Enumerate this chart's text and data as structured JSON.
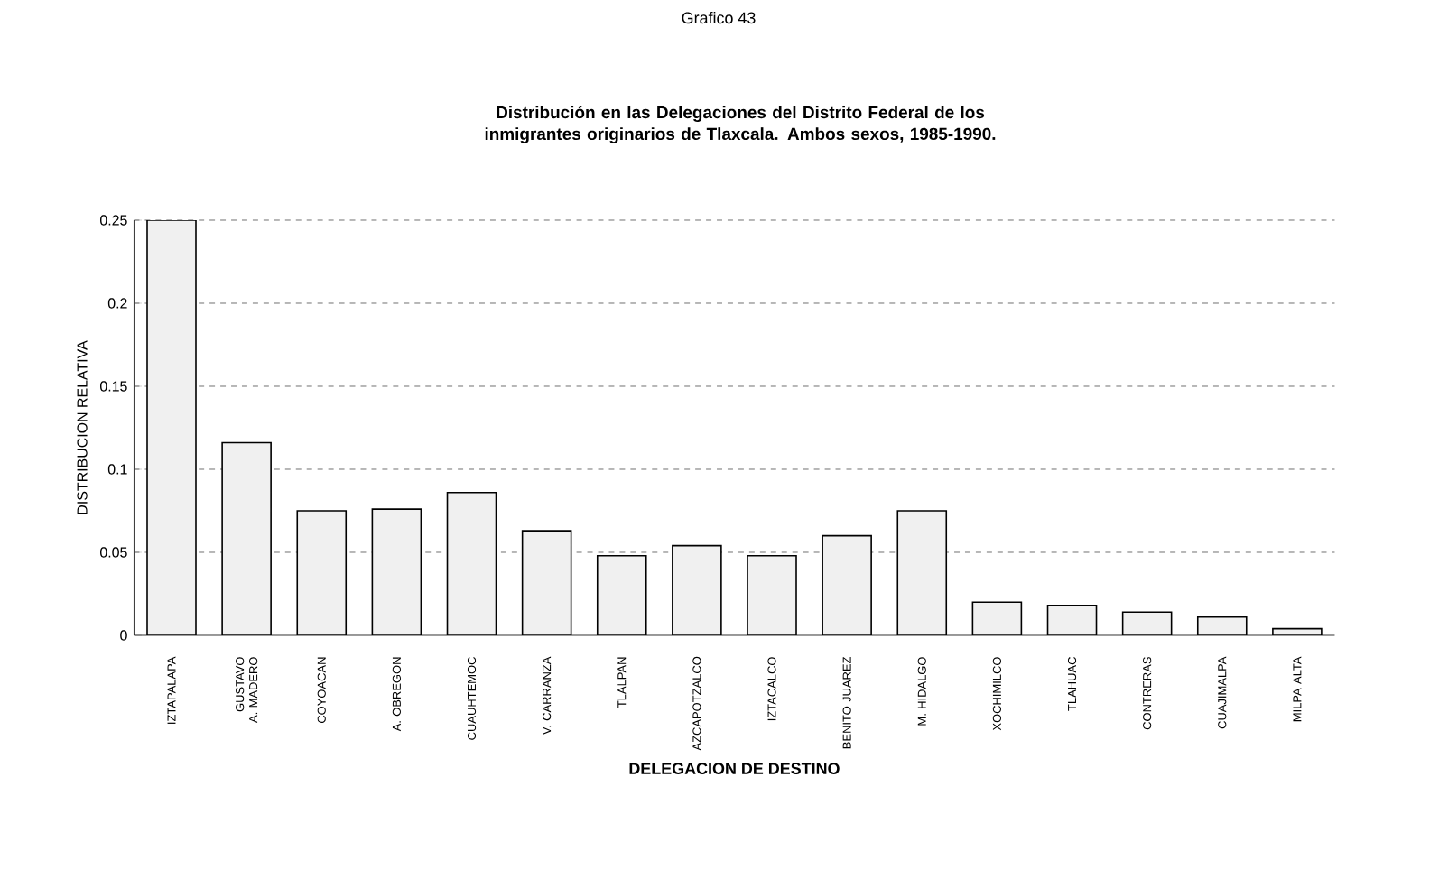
{
  "chart_data": {
    "type": "bar",
    "title": "Distribución en las Delegaciones del Distrito Federal de los inmigrantes originarios de Tlaxcala. Ambos sexos, 1985-1990.",
    "annotations": [
      "Grafico 43"
    ],
    "xlabel": "DELEGACION DE DESTINO",
    "ylabel": "DISTRIBUCION RELATIVA",
    "categories": [
      "IZTAPALAPA",
      "GUSTAVO A. MADERO",
      "COYOACAN",
      "A. OBREGON",
      "CUAUHTEMOC",
      "V. CARRANZA",
      "TLALPAN",
      "AZCAPOTZALCO",
      "IZTACALCO",
      "BENITO JUAREZ",
      "M. HIDALGO",
      "XOCHIMILCO",
      "TLAHUAC",
      "CONTRERAS",
      "CUAJIMALPA",
      "MILPA ALTA"
    ],
    "values": [
      0.25,
      0.116,
      0.075,
      0.076,
      0.086,
      0.063,
      0.048,
      0.054,
      0.048,
      0.06,
      0.075,
      0.02,
      0.018,
      0.014,
      0.011,
      0.004
    ],
    "color": "#f0f0f0",
    "ylim": [
      0,
      0.25
    ],
    "yticks": [
      0,
      0.05,
      0.1,
      0.15,
      0.2,
      0.25
    ],
    "grid": "y"
  }
}
